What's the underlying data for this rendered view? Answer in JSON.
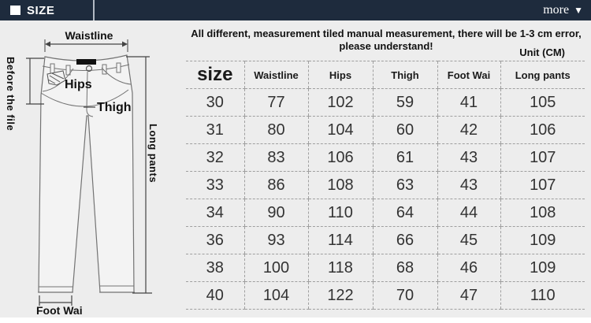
{
  "topbar": {
    "title": "SIZE",
    "more_label": "more",
    "more_icon": "▼"
  },
  "notice": {
    "line1": "All different, measurement tiled manual measurement, there will be 1-3 cm error,",
    "line2": "please understand!",
    "unit": "Unit (CM)"
  },
  "diagram": {
    "labels": {
      "waistline": "Waistline",
      "before_the_file": "Before the file",
      "hips": "Hips",
      "thigh": "Thigh",
      "long_pants": "Long pants",
      "foot_wai": "Foot Wai"
    }
  },
  "table": {
    "headers": [
      "size",
      "Waistline",
      "Hips",
      "Thigh",
      "Foot Wai",
      "Long pants"
    ],
    "rows": [
      [
        "30",
        "77",
        "102",
        "59",
        "41",
        "105"
      ],
      [
        "31",
        "80",
        "104",
        "60",
        "42",
        "106"
      ],
      [
        "32",
        "83",
        "106",
        "61",
        "43",
        "107"
      ],
      [
        "33",
        "86",
        "108",
        "63",
        "43",
        "107"
      ],
      [
        "34",
        "90",
        "110",
        "64",
        "44",
        "108"
      ],
      [
        "36",
        "93",
        "114",
        "66",
        "45",
        "109"
      ],
      [
        "38",
        "100",
        "118",
        "68",
        "46",
        "109"
      ],
      [
        "40",
        "104",
        "122",
        "70",
        "47",
        "110"
      ]
    ]
  },
  "colors": {
    "topbar_bg": "#1e2b3d",
    "panel_bg": "#ededed",
    "dash_border": "#9f9f9f",
    "label_patch": "#111111"
  }
}
